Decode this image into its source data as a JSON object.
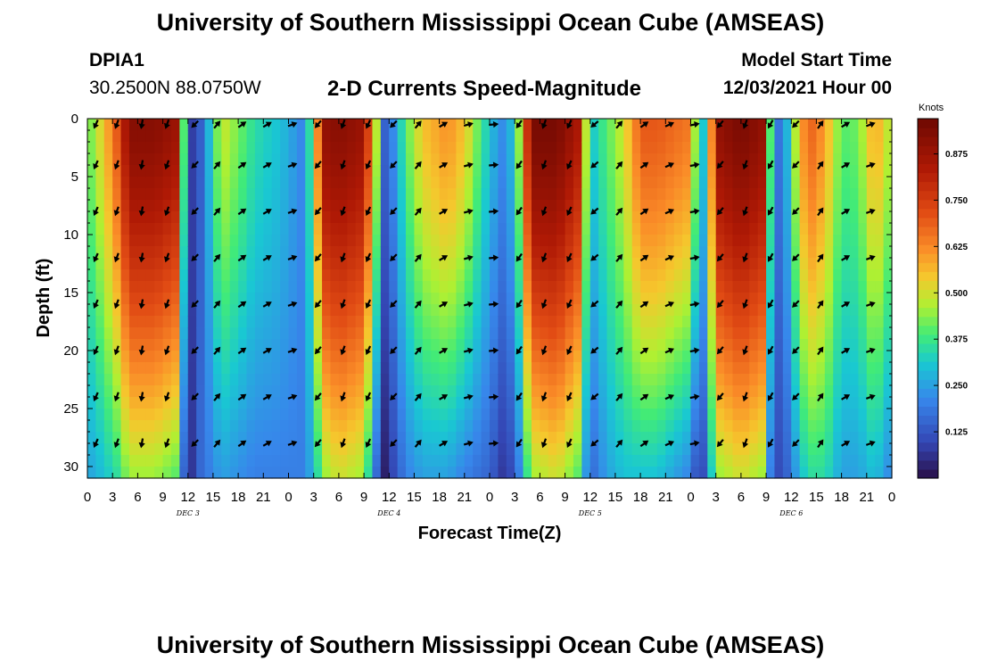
{
  "header": {
    "title": "University of Southern Mississippi Ocean Cube (AMSEAS)",
    "station_id": "DPIA1",
    "station_coords": "30.2500N  88.0750W",
    "model_start_label": "Model Start Time",
    "model_start_value": "12/03/2021 Hour 00"
  },
  "footer": {
    "title": "University of Southern Mississippi Ocean Cube (AMSEAS)"
  },
  "chart_data": {
    "type": "heatmap",
    "title": "2-D Currents Speed-Magnitude",
    "xlabel": "Forecast Time(Z)",
    "ylabel": "Depth (ft)",
    "colorbar_label": "Knots",
    "colorbar_ticks": [
      "0.875",
      "0.750",
      "0.625",
      "0.500",
      "0.375",
      "0.250",
      "0.125"
    ],
    "colorbar_range": [
      0,
      0.97
    ],
    "x_range_hours": [
      0,
      96
    ],
    "x_tick_labels": [
      "0",
      "3",
      "6",
      "9",
      "12",
      "15",
      "18",
      "21",
      "0",
      "3",
      "6",
      "9",
      "12",
      "15",
      "18",
      "21",
      "0",
      "3",
      "6",
      "9",
      "12",
      "15",
      "18",
      "21",
      "0",
      "3",
      "6",
      "9",
      "12",
      "15",
      "18",
      "21",
      "0"
    ],
    "day_labels": [
      {
        "hour": 12,
        "text": "DEC 3"
      },
      {
        "hour": 36,
        "text": "DEC 4"
      },
      {
        "hour": 60,
        "text": "DEC 5"
      },
      {
        "hour": 84,
        "text": "DEC 6"
      }
    ],
    "depth_range_ft": [
      0,
      31
    ],
    "y_tick_labels": [
      "0",
      "5",
      "10",
      "15",
      "20",
      "25",
      "30"
    ],
    "speed_profile_hours": [
      0,
      2,
      3.5,
      5,
      8,
      10.5,
      11.5,
      12.3,
      13.2,
      16,
      20,
      23,
      26,
      27,
      28.5,
      30,
      33,
      34.8,
      35.5,
      36.5,
      38,
      40,
      43,
      45,
      48,
      50,
      51.5,
      53,
      56,
      58.5,
      60,
      62,
      64,
      66,
      68,
      72,
      73.2,
      74,
      75.5,
      78,
      80.5,
      81.5,
      82.8,
      84,
      86,
      88,
      90,
      92,
      94,
      96
    ],
    "surface_speed_knots": [
      0.4,
      0.55,
      0.7,
      0.92,
      0.92,
      0.88,
      0.4,
      0.08,
      0.1,
      0.5,
      0.35,
      0.3,
      0.2,
      0.5,
      0.9,
      0.92,
      0.88,
      0.4,
      0.15,
      0.22,
      0.4,
      0.55,
      0.62,
      0.55,
      0.3,
      0.2,
      0.45,
      0.95,
      0.95,
      0.85,
      0.3,
      0.4,
      0.5,
      0.7,
      0.7,
      0.65,
      0.2,
      0.5,
      0.9,
      0.95,
      0.9,
      0.4,
      0.12,
      0.4,
      0.7,
      0.6,
      0.4,
      0.42,
      0.6,
      0.45
    ],
    "bottom_speed_knots": [
      0.25,
      0.3,
      0.35,
      0.45,
      0.45,
      0.4,
      0.15,
      0.05,
      0.15,
      0.25,
      0.2,
      0.2,
      0.2,
      0.3,
      0.45,
      0.5,
      0.45,
      0.1,
      0.03,
      0.1,
      0.2,
      0.25,
      0.25,
      0.2,
      0.15,
      0.05,
      0.2,
      0.45,
      0.5,
      0.4,
      0.15,
      0.25,
      0.3,
      0.3,
      0.3,
      0.2,
      0.03,
      0.25,
      0.45,
      0.5,
      0.45,
      0.2,
      0.08,
      0.2,
      0.35,
      0.35,
      0.25,
      0.25,
      0.3,
      0.2
    ],
    "vector_hours": [
      1,
      3.5,
      6.5,
      9.5,
      12.8,
      15.5,
      18.5,
      21.5,
      24.5,
      27.5,
      30.5,
      33.5,
      36.5,
      39.5,
      42.5,
      45.5,
      48.5,
      51.5,
      54.5,
      57.5,
      60.5,
      63.5,
      66.5,
      69.5,
      72.5,
      75.5,
      78.5,
      81.5,
      84.5,
      87.5,
      90.5,
      93.5
    ],
    "vector_direction_deg": [
      205,
      200,
      190,
      200,
      225,
      40,
      55,
      60,
      70,
      220,
      200,
      205,
      225,
      40,
      60,
      75,
      85,
      215,
      200,
      205,
      230,
      40,
      55,
      65,
      80,
      220,
      200,
      210,
      225,
      35,
      60,
      70
    ],
    "vector_depths_ft": [
      0.5,
      4,
      8,
      12,
      16,
      20,
      24,
      28
    ]
  }
}
